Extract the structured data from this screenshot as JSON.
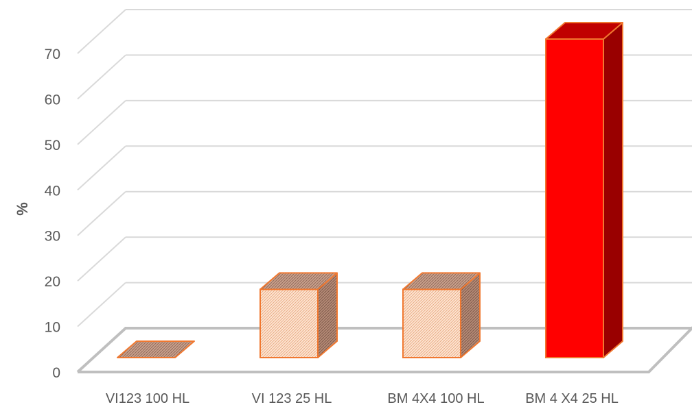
{
  "chart_data": {
    "type": "bar",
    "style": "3d-column",
    "ylabel": "%",
    "ylim": [
      0,
      70
    ],
    "yticks": [
      0,
      10,
      20,
      30,
      40,
      50,
      60,
      70
    ],
    "grid": true,
    "legend": "none",
    "categories": [
      "VI123 100 HL",
      "VI 123 25 HL",
      "BM 4X4 100 HL",
      "BM 4 X4 25 HL"
    ],
    "values": [
      0,
      15,
      15,
      70
    ],
    "bar_styles": [
      {
        "fill": "pattern-light",
        "edge": "#f07830"
      },
      {
        "fill": "pattern-light",
        "edge": "#f07830"
      },
      {
        "fill": "pattern-light",
        "edge": "#f07830"
      },
      {
        "fill": "#ff0000",
        "edge": "#f07830"
      }
    ],
    "colors": {
      "gridline": "#d9d9d9",
      "floor": "#bfbfbf",
      "red_front": "#ff0000",
      "red_top": "#c00000",
      "red_side": "#990000",
      "pattern_front": "#fde3d0",
      "pattern_top": "#b58a76",
      "pattern_side": "#a47d6b",
      "edge": "#f07830"
    }
  }
}
